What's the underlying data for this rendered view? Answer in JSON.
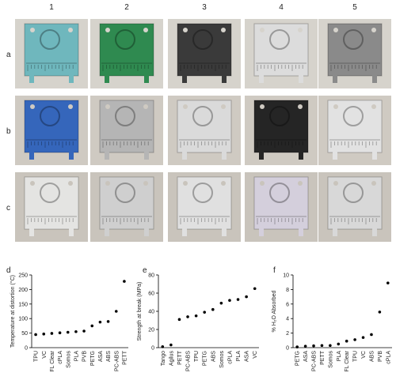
{
  "photo_grid": {
    "column_labels": [
      "1",
      "2",
      "3",
      "4",
      "5"
    ],
    "row_labels": [
      "a",
      "b",
      "c"
    ]
  },
  "chart_data": [
    {
      "type": "scatter",
      "panel_label": "d",
      "y_label": "Temperature at distortion (°C)",
      "categories": [
        "TPU",
        "VC",
        "FL Clear",
        "cPLA",
        "Somos",
        "PLA",
        "PVB",
        "PETG",
        "ASA",
        "ABS",
        "PC-ABS",
        "PETT"
      ],
      "values": [
        45,
        47,
        49,
        51,
        53,
        55,
        57,
        75,
        88,
        90,
        125,
        228
      ],
      "color": "#000000",
      "ylim": [
        0,
        250
      ],
      "yticks": [
        0,
        50,
        100,
        150,
        200,
        250
      ]
    },
    {
      "type": "scatter",
      "panel_label": "e",
      "y_label": "Strength at break (MPa)",
      "categories": [
        "Tango",
        "Agilus",
        "PETT",
        "PC-ABS",
        "TPU",
        "PETG",
        "ABS",
        "Somos",
        "cPLA",
        "PLA",
        "ASA",
        "VC"
      ],
      "values": [
        1,
        3,
        31,
        34,
        35,
        39,
        42,
        49,
        52,
        53,
        56,
        65
      ],
      "color": "#000000",
      "ylim": [
        0,
        80
      ],
      "yticks": [
        0,
        20,
        40,
        60,
        80
      ]
    },
    {
      "type": "scatter",
      "panel_label": "f",
      "y_label": "% H₂O Absorbed",
      "categories": [
        "PETG",
        "ASA",
        "PC-ABS",
        "PETT",
        "Somos",
        "PLA",
        "FL Clear",
        "TPU",
        "VC",
        "ABS",
        "PVB",
        "cPLA"
      ],
      "values": [
        0.1,
        0.2,
        0.25,
        0.3,
        0.3,
        0.5,
        0.9,
        1.1,
        1.4,
        1.8,
        4.9,
        8.9
      ],
      "color": "#000000",
      "ylim": [
        0,
        10
      ],
      "yticks": [
        0,
        2,
        4,
        6,
        8,
        10
      ]
    }
  ]
}
